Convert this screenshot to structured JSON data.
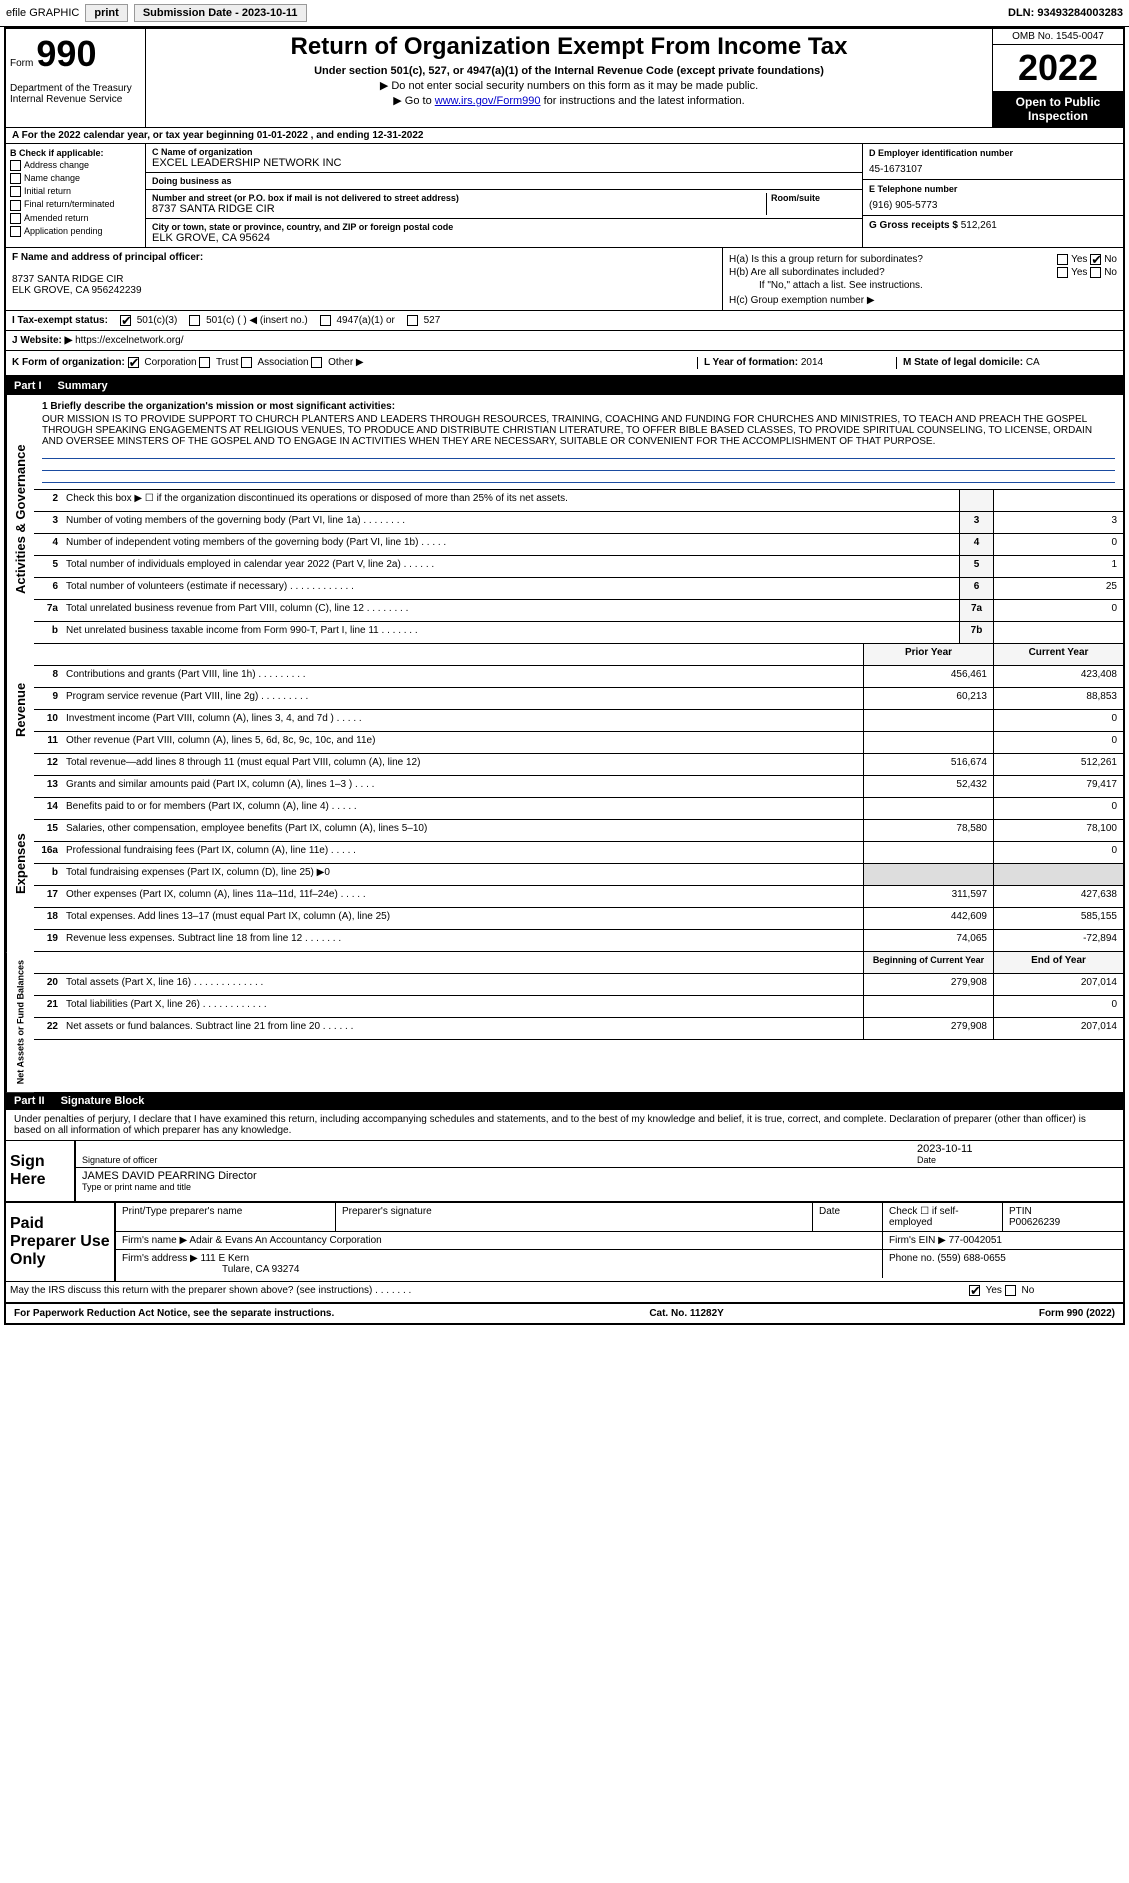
{
  "topbar": {
    "efile": "efile GRAPHIC",
    "print": "print",
    "submission_label": "Submission Date - 2023-10-11",
    "dln": "DLN: 93493284003283"
  },
  "header": {
    "form_word": "Form",
    "form_num": "990",
    "dept": "Department of the Treasury\nInternal Revenue Service",
    "title": "Return of Organization Exempt From Income Tax",
    "subtitle": "Under section 501(c), 527, or 4947(a)(1) of the Internal Revenue Code (except private foundations)",
    "note1": "▶ Do not enter social security numbers on this form as it may be made public.",
    "note2_pre": "▶ Go to ",
    "note2_link": "www.irs.gov/Form990",
    "note2_post": " for instructions and the latest information.",
    "omb": "OMB No. 1545-0047",
    "year": "2022",
    "open": "Open to Public Inspection"
  },
  "row_a": "A For the 2022 calendar year, or tax year beginning 01-01-2022  , and ending 12-31-2022",
  "block_b": {
    "label": "B Check if applicable:",
    "opts": [
      "Address change",
      "Name change",
      "Initial return",
      "Final return/terminated",
      "Amended return",
      "Application pending"
    ]
  },
  "org": {
    "c_label": "C Name of organization",
    "name": "EXCEL LEADERSHIP NETWORK INC",
    "dba_label": "Doing business as",
    "dba": "",
    "addr_label": "Number and street (or P.O. box if mail is not delivered to street address)",
    "room_label": "Room/suite",
    "addr": "8737 SANTA RIDGE CIR",
    "city_label": "City or town, state or province, country, and ZIP or foreign postal code",
    "city": "ELK GROVE, CA  95624"
  },
  "right": {
    "d_label": "D Employer identification number",
    "ein": "45-1673107",
    "e_label": "E Telephone number",
    "phone": "(916) 905-5773",
    "g_label": "G Gross receipts $",
    "gross": "512,261"
  },
  "f": {
    "label": "F  Name and address of principal officer:",
    "name": "",
    "addr": "8737 SANTA RIDGE CIR\nELK GROVE, CA  956242239"
  },
  "h": {
    "a_label": "H(a)  Is this a group return for subordinates?",
    "a_yes": "Yes",
    "a_no": "No",
    "b_label": "H(b)  Are all subordinates included?",
    "b_yes": "Yes",
    "b_no": "No",
    "b_note": "If \"No,\" attach a list. See instructions.",
    "c_label": "H(c)  Group exemption number ▶"
  },
  "i": {
    "label": "I  Tax-exempt status:",
    "o1": "501(c)(3)",
    "o2": "501(c) (   ) ◀ (insert no.)",
    "o3": "4947(a)(1) or",
    "o4": "527"
  },
  "j": {
    "label": "J  Website: ▶",
    "url": "https://excelnetwork.org/"
  },
  "k": {
    "label": "K Form of organization:",
    "o1": "Corporation",
    "o2": "Trust",
    "o3": "Association",
    "o4": "Other ▶",
    "l_label": "L Year of formation:",
    "l_val": "2014",
    "m_label": "M State of legal domicile:",
    "m_val": "CA"
  },
  "part1": {
    "num": "Part I",
    "title": "Summary"
  },
  "side_labels": {
    "gov": "Activities & Governance",
    "rev": "Revenue",
    "exp": "Expenses",
    "net": "Net Assets or Fund Balances"
  },
  "mission": {
    "label": "1   Briefly describe the organization's mission or most significant activities:",
    "text": "OUR MISSION IS TO PROVIDE SUPPORT TO CHURCH PLANTERS AND LEADERS THROUGH RESOURCES, TRAINING, COACHING AND FUNDING FOR CHURCHES AND MINISTRIES, TO TEACH AND PREACH THE GOSPEL THROUGH SPEAKING ENGAGEMENTS AT RELIGIOUS VENUES, TO PRODUCE AND DISTRIBUTE CHRISTIAN LITERATURE, TO OFFER BIBLE BASED CLASSES, TO PROVIDE SPIRITUAL COUNSELING, TO LICENSE, ORDAIN AND OVERSEE MINSTERS OF THE GOSPEL AND TO ENGAGE IN ACTIVITIES WHEN THEY ARE NECESSARY, SUITABLE OR CONVENIENT FOR THE ACCOMPLISHMENT OF THAT PURPOSE."
  },
  "gov_lines": [
    {
      "n": "2",
      "d": "Check this box ▶ ☐ if the organization discontinued its operations or disposed of more than 25% of its net assets.",
      "c": "",
      "v": ""
    },
    {
      "n": "3",
      "d": "Number of voting members of the governing body (Part VI, line 1a)  .    .    .    .    .    .    .    .",
      "c": "3",
      "v": "3"
    },
    {
      "n": "4",
      "d": "Number of independent voting members of the governing body (Part VI, line 1b)   .    .    .    .    .",
      "c": "4",
      "v": "0"
    },
    {
      "n": "5",
      "d": "Total number of individuals employed in calendar year 2022 (Part V, line 2a)   .    .    .    .    .    .",
      "c": "5",
      "v": "1"
    },
    {
      "n": "6",
      "d": "Total number of volunteers (estimate if necessary)   .    .    .    .    .    .    .    .    .    .    .    .",
      "c": "6",
      "v": "25"
    },
    {
      "n": "7a",
      "d": "Total unrelated business revenue from Part VIII, column (C), line 12   .    .    .    .    .    .    .    .",
      "c": "7a",
      "v": "0"
    },
    {
      "n": "b",
      "d": "Net unrelated business taxable income from Form 990-T, Part I, line 11   .    .    .    .    .    .    .",
      "c": "7b",
      "v": ""
    }
  ],
  "col_headers": {
    "prior": "Prior Year",
    "current": "Current Year"
  },
  "rev_lines": [
    {
      "n": "8",
      "d": "Contributions and grants (Part VIII, line 1h)   .    .    .    .    .    .    .    .    .",
      "p": "456,461",
      "c": "423,408"
    },
    {
      "n": "9",
      "d": "Program service revenue (Part VIII, line 2g)   .    .    .    .    .    .    .    .    .",
      "p": "60,213",
      "c": "88,853"
    },
    {
      "n": "10",
      "d": "Investment income (Part VIII, column (A), lines 3, 4, and 7d )   .    .    .    .    .",
      "p": "",
      "c": "0"
    },
    {
      "n": "11",
      "d": "Other revenue (Part VIII, column (A), lines 5, 6d, 8c, 9c, 10c, and 11e)",
      "p": "",
      "c": "0"
    },
    {
      "n": "12",
      "d": "Total revenue—add lines 8 through 11 (must equal Part VIII, column (A), line 12)",
      "p": "516,674",
      "c": "512,261"
    }
  ],
  "exp_lines": [
    {
      "n": "13",
      "d": "Grants and similar amounts paid (Part IX, column (A), lines 1–3 )   .    .    .    .",
      "p": "52,432",
      "c": "79,417"
    },
    {
      "n": "14",
      "d": "Benefits paid to or for members (Part IX, column (A), line 4)   .    .    .    .    .",
      "p": "",
      "c": "0"
    },
    {
      "n": "15",
      "d": "Salaries, other compensation, employee benefits (Part IX, column (A), lines 5–10)",
      "p": "78,580",
      "c": "78,100"
    },
    {
      "n": "16a",
      "d": "Professional fundraising fees (Part IX, column (A), line 11e)   .    .    .    .    .",
      "p": "",
      "c": "0"
    },
    {
      "n": "b",
      "d": "Total fundraising expenses (Part IX, column (D), line 25) ▶0",
      "p": "shaded",
      "c": "shaded"
    },
    {
      "n": "17",
      "d": "Other expenses (Part IX, column (A), lines 11a–11d, 11f–24e)   .    .    .    .    .",
      "p": "311,597",
      "c": "427,638"
    },
    {
      "n": "18",
      "d": "Total expenses. Add lines 13–17 (must equal Part IX, column (A), line 25)",
      "p": "442,609",
      "c": "585,155"
    },
    {
      "n": "19",
      "d": "Revenue less expenses. Subtract line 18 from line 12   .    .    .    .    .    .    .",
      "p": "74,065",
      "c": "-72,894"
    }
  ],
  "net_headers": {
    "beg": "Beginning of Current Year",
    "end": "End of Year"
  },
  "net_lines": [
    {
      "n": "20",
      "d": "Total assets (Part X, line 16)   .    .    .    .    .    .    .    .    .    .    .    .    .",
      "p": "279,908",
      "c": "207,014"
    },
    {
      "n": "21",
      "d": "Total liabilities (Part X, line 26)   .    .    .    .    .    .    .    .    .    .    .    .",
      "p": "",
      "c": "0"
    },
    {
      "n": "22",
      "d": "Net assets or fund balances. Subtract line 21 from line 20   .    .    .    .    .    .",
      "p": "279,908",
      "c": "207,014"
    }
  ],
  "part2": {
    "num": "Part II",
    "title": "Signature Block"
  },
  "declaration": "Under penalties of perjury, I declare that I have examined this return, including accompanying schedules and statements, and to the best of my knowledge and belief, it is true, correct, and complete. Declaration of preparer (other than officer) is based on all information of which preparer has any knowledge.",
  "sign": {
    "left": "Sign Here",
    "sig_label": "Signature of officer",
    "date_label": "Date",
    "date": "2023-10-11",
    "name": "JAMES DAVID PEARRING  Director",
    "name_label": "Type or print name and title"
  },
  "prep": {
    "left": "Paid Preparer Use Only",
    "h1": "Print/Type preparer's name",
    "h2": "Preparer's signature",
    "h3": "Date",
    "h4_a": "Check ☐ if self-employed",
    "h4_b": "PTIN",
    "ptin": "P00626239",
    "firm_label": "Firm's name    ▶",
    "firm": "Adair & Evans An Accountancy Corporation",
    "ein_label": "Firm's EIN ▶",
    "ein": "77-0042051",
    "addr_label": "Firm's address ▶",
    "addr1": "111 E Kern",
    "addr2": "Tulare, CA  93274",
    "phone_label": "Phone no.",
    "phone": "(559) 688-0655"
  },
  "discuss": {
    "text": "May the IRS discuss this return with the preparer shown above? (see instructions)   .    .    .    .    .    .    .",
    "yes": "Yes",
    "no": "No"
  },
  "footer": {
    "left": "For Paperwork Reduction Act Notice, see the separate instructions.",
    "mid": "Cat. No. 11282Y",
    "right": "Form 990 (2022)"
  }
}
